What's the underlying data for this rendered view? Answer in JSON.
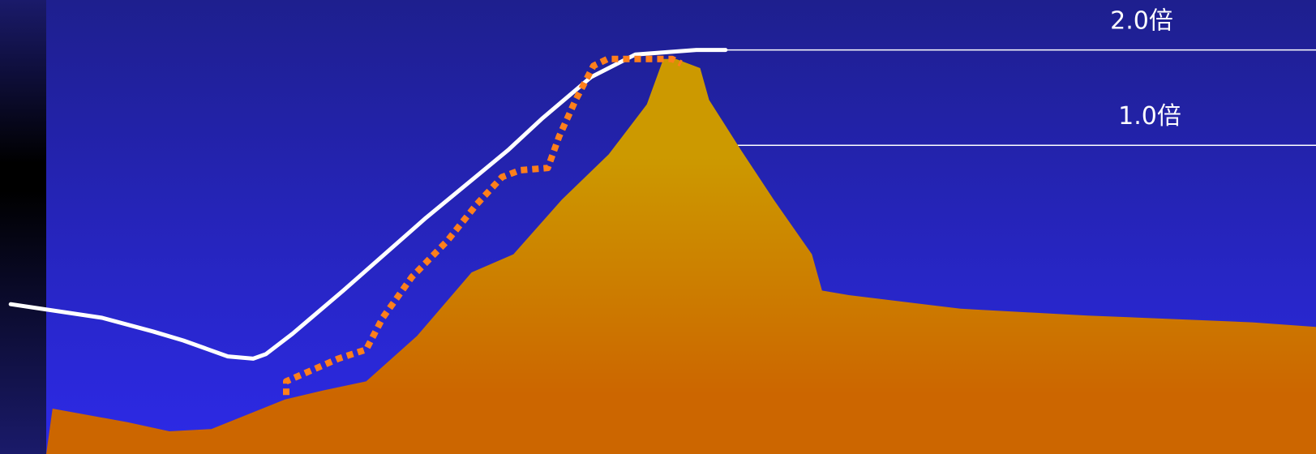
{
  "chart_data": {
    "type": "area",
    "title": "",
    "xlabel": "",
    "ylabel": "",
    "xlim": [
      0,
      100
    ],
    "ylim": [
      0,
      100
    ],
    "grid": false,
    "legend": "none",
    "colors": {
      "background_top": "#1e1f8e",
      "background_bottom": "#2d2ae8",
      "edge_bar_top": "#1a1a6a",
      "edge_bar_mid": "#000000",
      "area_top": "#cc9900",
      "area_bottom": "#cc6600",
      "solid_line": "#ffffff",
      "dotted_line": "#ff7f1a",
      "reference_line": "#ffffff"
    },
    "reference_lines": [
      {
        "y": 89,
        "label": "2.0倍"
      },
      {
        "y": 68,
        "label": "1.0倍"
      }
    ],
    "series": [
      {
        "style": "area",
        "x": [
          0,
          0.5,
          6.4,
          9.7,
          13,
          18.8,
          21.8,
          25.2,
          29.2,
          33.5,
          36.8,
          40.6,
          44.3,
          47.3,
          48.6,
          49.6,
          51.5,
          52.2,
          54.7,
          57.3,
          60.3,
          61.1,
          63.2,
          72,
          82,
          95,
          100
        ],
        "y": [
          0,
          10,
          7,
          5,
          5.5,
          12,
          14,
          16,
          26,
          40,
          44,
          56,
          66,
          77,
          87,
          87,
          85,
          78,
          67,
          56,
          44,
          36,
          35,
          32,
          30.5,
          29,
          28
        ]
      },
      {
        "style": "line-solid",
        "x": [
          -2.8,
          4.4,
          8.4,
          10.8,
          14.3,
          16.3,
          17.3,
          19.4,
          23.4,
          29.9,
          33.8,
          36.4,
          39.1,
          42.9,
          46.4,
          51.2,
          53.5
        ],
        "y": [
          33,
          30,
          27,
          25,
          21.5,
          21,
          22,
          26.5,
          36,
          52,
          61,
          67,
          74,
          83,
          88,
          89,
          89
        ]
      },
      {
        "style": "line-dotted",
        "x": [
          18.9,
          18.9,
          23,
          25.2,
          26.5,
          28.8,
          31.6,
          33.9,
          35.9,
          37.3,
          39.5,
          40.4,
          41.7,
          43.1,
          44.2,
          49.3,
          50
        ],
        "y": [
          13,
          16,
          21,
          23,
          30,
          39,
          47,
          55,
          61,
          62.5,
          63,
          70,
          78,
          85.5,
          87,
          87,
          86
        ]
      }
    ]
  }
}
